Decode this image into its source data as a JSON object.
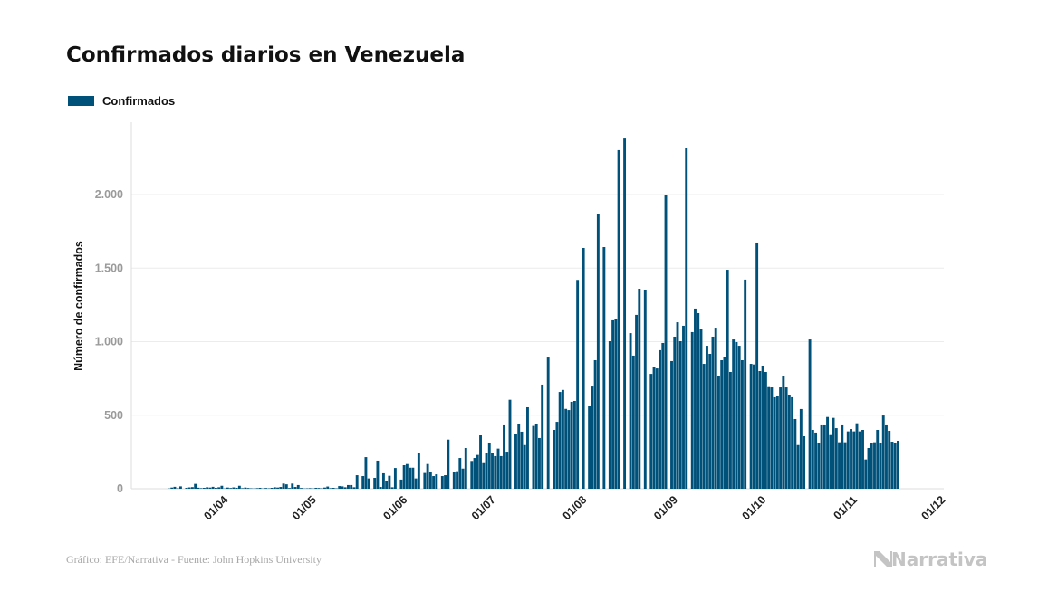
{
  "chart_data": {
    "type": "bar",
    "title": "Confirmados diarios en Venezuela",
    "legend": [
      {
        "name": "Confirmados",
        "color": "#00517a"
      }
    ],
    "legend_placement": "top-left",
    "xlabel": "",
    "ylabel": "Número de confirmados",
    "ylim": [
      0,
      2500
    ],
    "y_ticks": [
      {
        "value": 0,
        "label": "0"
      },
      {
        "value": 500,
        "label": "500"
      },
      {
        "value": 1000,
        "label": "1.000"
      },
      {
        "value": 1500,
        "label": "1.500"
      },
      {
        "value": 2000,
        "label": "2.000"
      }
    ],
    "x_start": "13/03",
    "x_step": "1 day",
    "x_ticks": [
      "01/04",
      "01/05",
      "01/06",
      "01/07",
      "01/08",
      "01/09",
      "01/10",
      "01/11",
      "01/12"
    ],
    "grid": true,
    "series": [
      {
        "name": "Confirmados",
        "color": "#00517a",
        "values": [
          2,
          8,
          13,
          3,
          16,
          0,
          6,
          9,
          11,
          33,
          7,
          4,
          6,
          10,
          8,
          13,
          6,
          10,
          20,
          2,
          8,
          5,
          9,
          6,
          20,
          4,
          8,
          5,
          3,
          2,
          4,
          6,
          2,
          5,
          3,
          6,
          10,
          8,
          12,
          35,
          30,
          5,
          35,
          12,
          25,
          5,
          2,
          3,
          4,
          2,
          6,
          5,
          3,
          8,
          15,
          4,
          6,
          3,
          18,
          16,
          10,
          25,
          25,
          10,
          92,
          0,
          86,
          215,
          70,
          0,
          74,
          191,
          12,
          105,
          51,
          88,
          10,
          141,
          0,
          62,
          160,
          168,
          143,
          143,
          70,
          242,
          0,
          107,
          168,
          117,
          86,
          98,
          0,
          86,
          92,
          334,
          0,
          111,
          119,
          209,
          137,
          277,
          0,
          189,
          209,
          230,
          363,
          174,
          242,
          314,
          240,
          222,
          273,
          222,
          431,
          252,
          605,
          0,
          375,
          443,
          388,
          297,
          554,
          0,
          427,
          437,
          345,
          708,
          0,
          892,
          0,
          400,
          455,
          658,
          672,
          543,
          535,
          591,
          597,
          1420,
          0,
          1637,
          0,
          560,
          695,
          874,
          1870,
          0,
          1643,
          0,
          1003,
          1145,
          1157,
          2302,
          0,
          2381,
          0,
          1058,
          905,
          1182,
          1360,
          0,
          1354,
          0,
          781,
          825,
          818,
          942,
          991,
          1994,
          0,
          868,
          1034,
          1132,
          1003,
          1108,
          2320,
          0,
          1065,
          1225,
          1194,
          1083,
          849,
          972,
          917,
          1034,
          1095,
          769,
          874,
          898,
          1489,
          794,
          1015,
          997,
          972,
          874,
          1422,
          0,
          849,
          845,
          1674,
          800,
          837,
          794,
          691,
          689,
          622,
          628,
          689,
          763,
          689,
          640,
          622,
          474,
          297,
          542,
          357,
          0,
          1015,
          400,
          382,
          314,
          431,
          431,
          488,
          365,
          482,
          412,
          316,
          431,
          316,
          390,
          406,
          390,
          445,
          390,
          400,
          199,
          277,
          308,
          316,
          400,
          314,
          498,
          431,
          394,
          320,
          314,
          326
        ]
      }
    ]
  },
  "footer": {
    "source": "Gráfico: EFE/Narrativa - Fuente: John Hopkins University",
    "logo_text": "Narrativa"
  },
  "colors": {
    "bar": "#00517a",
    "grid": "#ececec",
    "axis": "#dddddd"
  }
}
